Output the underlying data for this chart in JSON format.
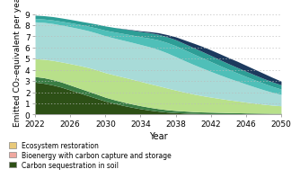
{
  "years": [
    2022,
    2023,
    2024,
    2025,
    2026,
    2027,
    2028,
    2029,
    2030,
    2031,
    2032,
    2033,
    2034,
    2035,
    2036,
    2037,
    2038,
    2039,
    2040,
    2041,
    2042,
    2043,
    2044,
    2045,
    2046,
    2047,
    2048,
    2049,
    2050
  ],
  "layers": {
    "carbon_seq_soil": [
      2.9,
      2.8,
      2.65,
      2.45,
      2.2,
      1.95,
      1.7,
      1.45,
      1.2,
      1.0,
      0.82,
      0.66,
      0.52,
      0.4,
      0.3,
      0.22,
      0.17,
      0.13,
      0.1,
      0.08,
      0.07,
      0.06,
      0.05,
      0.05,
      0.04,
      0.04,
      0.03,
      0.03,
      0.03
    ],
    "medium_green": [
      0.5,
      0.5,
      0.48,
      0.46,
      0.44,
      0.42,
      0.4,
      0.38,
      0.35,
      0.33,
      0.31,
      0.29,
      0.27,
      0.25,
      0.23,
      0.21,
      0.19,
      0.18,
      0.16,
      0.15,
      0.14,
      0.13,
      0.12,
      0.11,
      0.1,
      0.09,
      0.09,
      0.08,
      0.08
    ],
    "light_green": [
      1.6,
      1.65,
      1.72,
      1.8,
      1.92,
      2.03,
      2.12,
      2.17,
      2.2,
      2.22,
      2.23,
      2.22,
      2.18,
      2.12,
      2.05,
      1.95,
      1.83,
      1.7,
      1.58,
      1.46,
      1.35,
      1.25,
      1.15,
      1.06,
      0.97,
      0.88,
      0.8,
      0.73,
      0.67
    ],
    "light_teal": [
      3.3,
      3.3,
      3.3,
      3.3,
      3.3,
      3.3,
      3.3,
      3.3,
      3.3,
      3.3,
      3.3,
      3.3,
      3.3,
      3.3,
      3.25,
      3.15,
      3.0,
      2.82,
      2.65,
      2.48,
      2.3,
      2.12,
      1.95,
      1.78,
      1.62,
      1.46,
      1.3,
      1.15,
      1.02
    ],
    "medium_teal": [
      0.3,
      0.3,
      0.32,
      0.34,
      0.36,
      0.38,
      0.4,
      0.45,
      0.5,
      0.55,
      0.6,
      0.65,
      0.7,
      0.78,
      0.86,
      0.92,
      0.97,
      0.97,
      0.95,
      0.92,
      0.88,
      0.83,
      0.78,
      0.73,
      0.68,
      0.63,
      0.58,
      0.53,
      0.48
    ],
    "dark_teal": [
      0.3,
      0.3,
      0.3,
      0.3,
      0.3,
      0.3,
      0.32,
      0.35,
      0.38,
      0.4,
      0.42,
      0.44,
      0.46,
      0.48,
      0.5,
      0.52,
      0.54,
      0.55,
      0.56,
      0.56,
      0.55,
      0.53,
      0.51,
      0.49,
      0.47,
      0.45,
      0.43,
      0.41,
      0.38
    ],
    "navy": [
      0.0,
      0.0,
      0.0,
      0.0,
      0.0,
      0.0,
      0.0,
      0.0,
      0.0,
      0.0,
      0.02,
      0.04,
      0.07,
      0.1,
      0.14,
      0.19,
      0.26,
      0.33,
      0.4,
      0.46,
      0.5,
      0.53,
      0.54,
      0.55,
      0.53,
      0.5,
      0.46,
      0.4,
      0.33
    ]
  },
  "colors": {
    "carbon_seq_soil": "#2d5016",
    "medium_green": "#3a7d44",
    "light_green": "#b8e08a",
    "light_teal": "#a8dbd8",
    "medium_teal": "#4fbfb8",
    "dark_teal": "#2d9e96",
    "navy": "#1c3a5e"
  },
  "legend": [
    {
      "label": "Ecosystem restoration",
      "color": "#e8c97a"
    },
    {
      "label": "Bioenergy with carbon capture and storage",
      "color": "#f0a8a0"
    },
    {
      "label": "Carbon sequestration in soil",
      "color": "#2d5016"
    }
  ],
  "xlabel": "Year",
  "ylabel": "Emitted CO₂-equivalent per yea",
  "ylim": [
    0,
    9.5
  ],
  "yticks": [
    0,
    1,
    2,
    3,
    4,
    5,
    6,
    7,
    8,
    9
  ],
  "xticks": [
    2022,
    2026,
    2030,
    2034,
    2038,
    2042,
    2046,
    2050
  ],
  "axis_fontsize": 7,
  "tick_fontsize": 6.5,
  "background_color": "#ffffff",
  "grid_color": "#bbbbbb"
}
